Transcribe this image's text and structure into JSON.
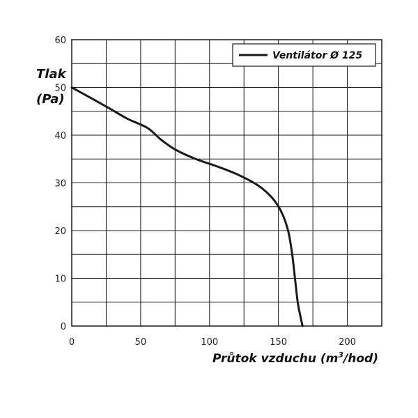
{
  "chart_data": {
    "type": "line",
    "title": "",
    "ylabel_line1": "Tlak",
    "ylabel_line2": "(Pa)",
    "xlabel_main": "Průtok vzduchu (m",
    "xlabel_sup": "3",
    "xlabel_end": "/hod)",
    "xlim": [
      0,
      225
    ],
    "ylim": [
      0,
      60
    ],
    "x_ticks": [
      0,
      50,
      100,
      150,
      200
    ],
    "y_ticks": [
      0,
      10,
      20,
      30,
      40,
      50,
      60
    ],
    "x_grid_step": 25,
    "y_grid_step": 5,
    "grid": true,
    "legend_position": "top-right",
    "series": [
      {
        "name": "Ventilátor Ø 125",
        "color": "#1a1a1a",
        "x": [
          0,
          25,
          40,
          55,
          65,
          75,
          90,
          105,
          120,
          135,
          145,
          152,
          157,
          160,
          162,
          164,
          166,
          167.5
        ],
        "y": [
          50,
          46,
          43.5,
          41.5,
          39,
          37,
          35,
          33.5,
          31.8,
          29.5,
          27,
          24,
          20,
          15,
          10,
          5,
          2,
          0
        ]
      }
    ]
  }
}
